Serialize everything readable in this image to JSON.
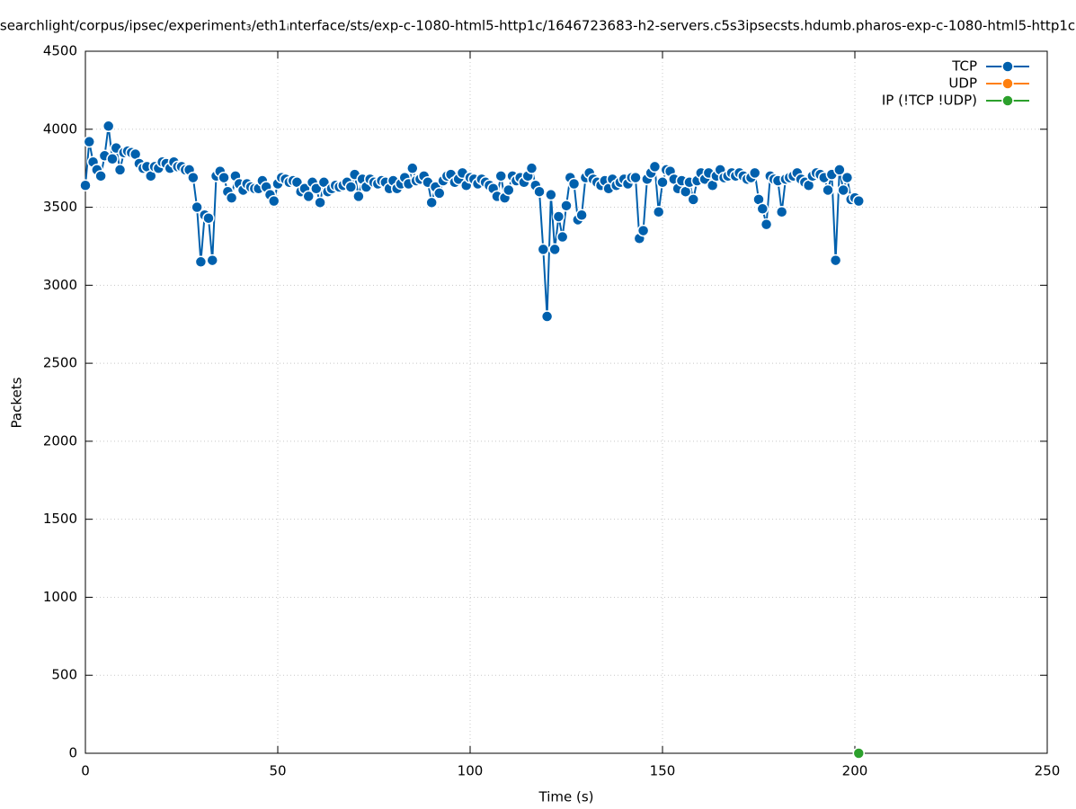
{
  "chart_data": {
    "type": "line",
    "title": "searchlight/corpus/ipsec/experiment₃/eth1ᵢnterface/sts/exp-c-1080-html5-http1c/1646723683-h2-servers.c5s3ipsecsts.hdumb.pharos-exp-c-1080-html5-http1c",
    "xlabel": "Time (s)",
    "ylabel": "Packets",
    "xlim": [
      0,
      250
    ],
    "xticks": [
      0,
      50,
      100,
      150,
      200,
      250
    ],
    "ylim": [
      0,
      4500
    ],
    "yticks": [
      0,
      500,
      1000,
      1500,
      2000,
      2500,
      3000,
      3500,
      4000,
      4500
    ],
    "grid": true,
    "legend": "top-right",
    "series": [
      {
        "name": "TCP",
        "color": "#0060ad",
        "x": [
          0,
          1,
          2,
          3,
          4,
          5,
          6,
          7,
          8,
          9,
          10,
          11,
          12,
          13,
          14,
          15,
          16,
          17,
          18,
          19,
          20,
          21,
          22,
          23,
          24,
          25,
          26,
          27,
          28,
          29,
          30,
          31,
          32,
          33,
          34,
          35,
          36,
          37,
          38,
          39,
          40,
          41,
          42,
          43,
          44,
          45,
          46,
          47,
          48,
          49,
          50,
          51,
          52,
          53,
          54,
          55,
          56,
          57,
          58,
          59,
          60,
          61,
          62,
          63,
          64,
          65,
          66,
          67,
          68,
          69,
          70,
          71,
          72,
          73,
          74,
          75,
          76,
          77,
          78,
          79,
          80,
          81,
          82,
          83,
          84,
          85,
          86,
          87,
          88,
          89,
          90,
          91,
          92,
          93,
          94,
          95,
          96,
          97,
          98,
          99,
          100,
          101,
          102,
          103,
          104,
          105,
          106,
          107,
          108,
          109,
          110,
          111,
          112,
          113,
          114,
          115,
          116,
          117,
          118,
          119,
          120,
          121,
          122,
          123,
          124,
          125,
          126,
          127,
          128,
          129,
          130,
          131,
          132,
          133,
          134,
          135,
          136,
          137,
          138,
          139,
          140,
          141,
          142,
          143,
          144,
          145,
          146,
          147,
          148,
          149,
          150,
          151,
          152,
          153,
          154,
          155,
          156,
          157,
          158,
          159,
          160,
          161,
          162,
          163,
          164,
          165,
          166,
          167,
          168,
          169,
          170,
          171,
          172,
          173,
          174,
          175,
          176,
          177,
          178,
          179,
          180,
          181,
          182,
          183,
          184,
          185,
          186,
          187,
          188,
          189,
          190,
          191,
          192,
          193,
          194,
          195,
          196,
          197,
          198,
          199,
          200,
          201
        ],
        "values": [
          3640,
          3920,
          3790,
          3740,
          3700,
          3830,
          4020,
          3810,
          3880,
          3740,
          3850,
          3860,
          3850,
          3840,
          3780,
          3750,
          3760,
          3700,
          3760,
          3750,
          3790,
          3780,
          3750,
          3790,
          3760,
          3760,
          3740,
          3740,
          3690,
          3500,
          3150,
          3450,
          3430,
          3160,
          3700,
          3730,
          3690,
          3600,
          3560,
          3700,
          3650,
          3610,
          3650,
          3630,
          3620,
          3620,
          3670,
          3630,
          3580,
          3540,
          3650,
          3690,
          3680,
          3660,
          3670,
          3660,
          3600,
          3620,
          3570,
          3660,
          3620,
          3530,
          3660,
          3600,
          3620,
          3640,
          3630,
          3640,
          3660,
          3630,
          3710,
          3570,
          3680,
          3630,
          3680,
          3660,
          3650,
          3670,
          3660,
          3620,
          3670,
          3620,
          3650,
          3690,
          3650,
          3750,
          3670,
          3680,
          3700,
          3660,
          3530,
          3630,
          3590,
          3670,
          3700,
          3710,
          3660,
          3680,
          3720,
          3640,
          3690,
          3680,
          3650,
          3680,
          3660,
          3640,
          3620,
          3570,
          3700,
          3560,
          3610,
          3700,
          3670,
          3690,
          3660,
          3700,
          3750,
          3640,
          3600,
          3230,
          2800,
          3580,
          3230,
          3440,
          3310,
          3510,
          3690,
          3650,
          3420,
          3450,
          3690,
          3720,
          3680,
          3660,
          3640,
          3670,
          3620,
          3680,
          3640,
          3660,
          3680,
          3650,
          3690,
          3690,
          3300,
          3350,
          3680,
          3720,
          3760,
          3470,
          3660,
          3740,
          3730,
          3680,
          3620,
          3670,
          3600,
          3660,
          3550,
          3670,
          3720,
          3680,
          3720,
          3640,
          3700,
          3740,
          3690,
          3700,
          3720,
          3700,
          3720,
          3700,
          3680,
          3690,
          3720,
          3550,
          3490,
          3390,
          3700,
          3680,
          3670,
          3470,
          3680,
          3690,
          3700,
          3720,
          3680,
          3660,
          3640,
          3700,
          3720,
          3710,
          3690,
          3610,
          3710,
          3160,
          3740,
          3610,
          3690,
          3550,
          3560,
          3540
        ]
      },
      {
        "name": "UDP",
        "color": "#ff7f0e",
        "x": [],
        "values": []
      },
      {
        "name": "IP (!TCP  !UDP)",
        "color": "#2ca02c",
        "x": [
          201
        ],
        "values": [
          0
        ]
      }
    ]
  }
}
